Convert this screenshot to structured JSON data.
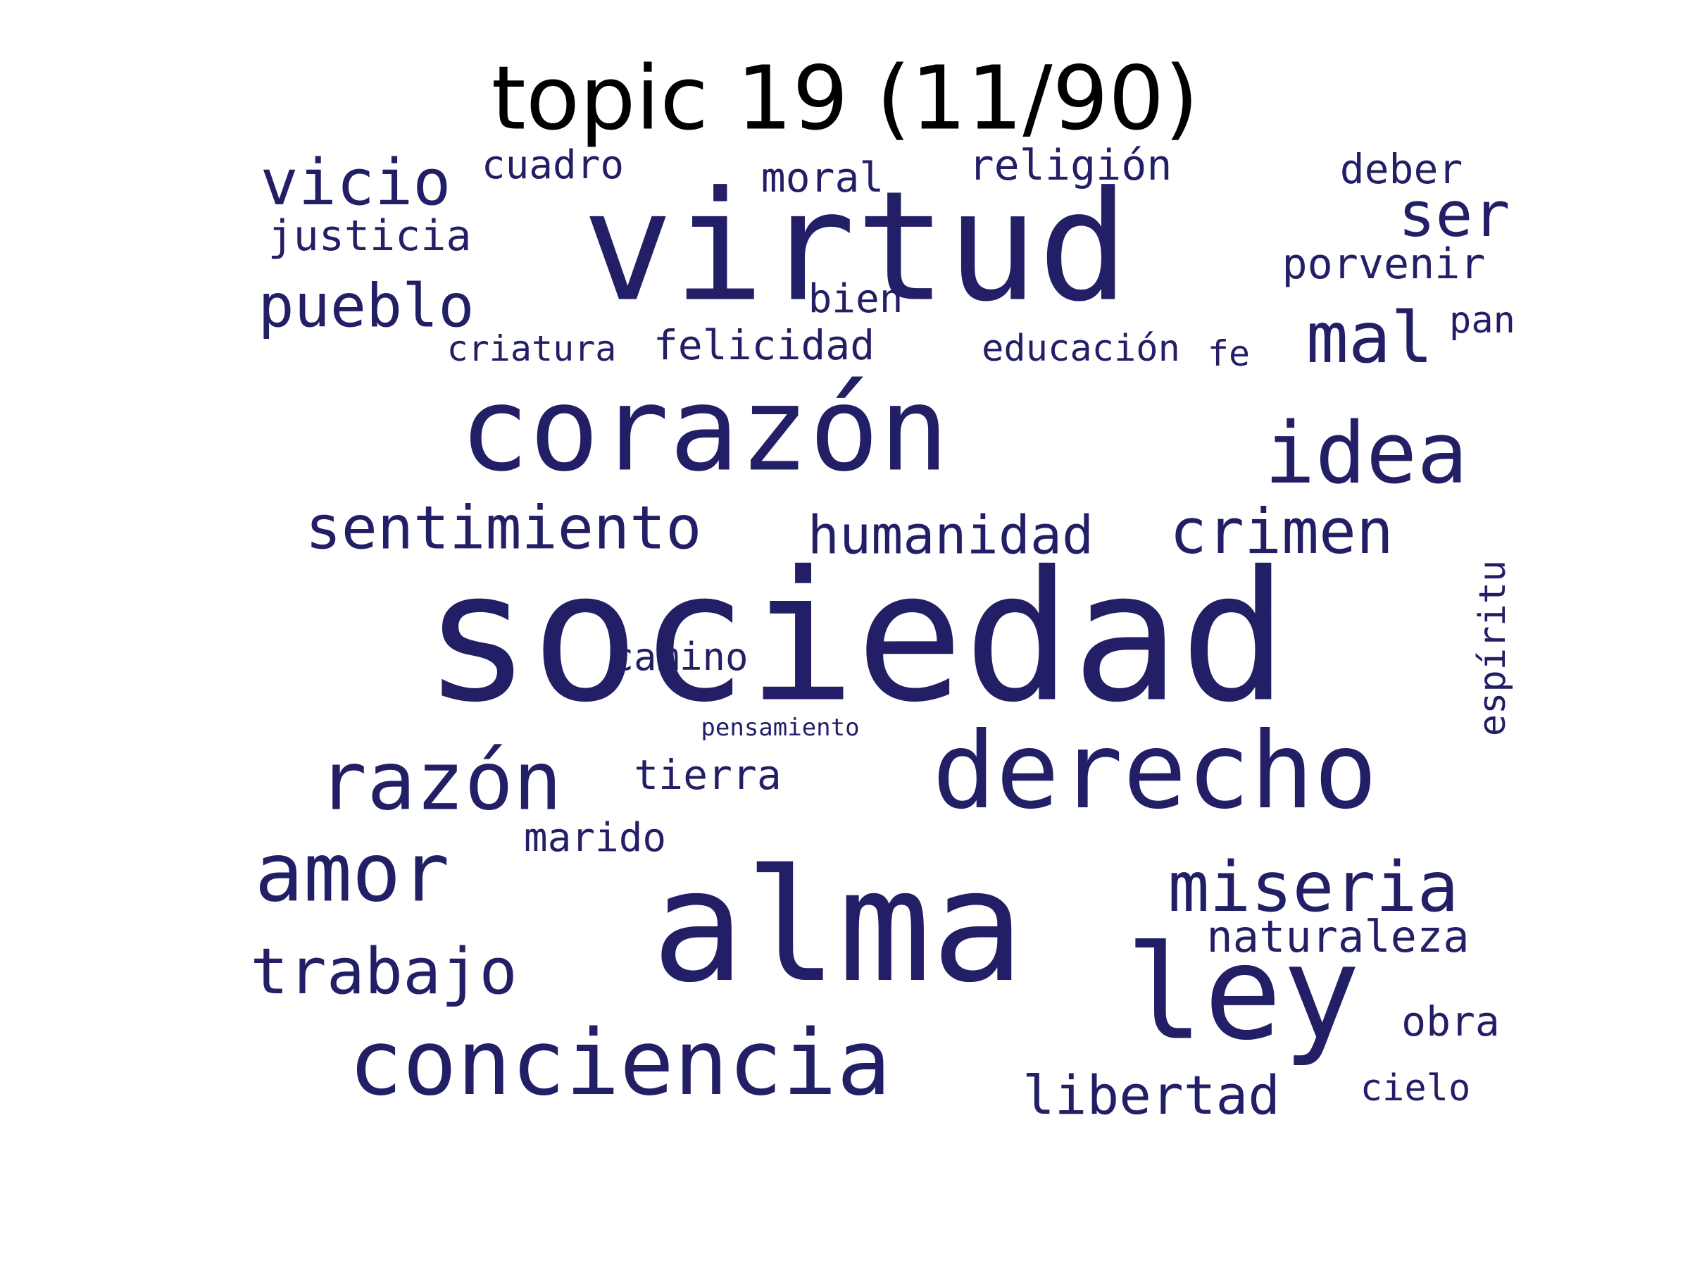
{
  "title": "topic 19 (11/90)",
  "colors": {
    "word": "#231f66",
    "title": "#000000",
    "background": "#ffffff"
  },
  "words": [
    {
      "text": "sociedad"
    },
    {
      "text": "virtud"
    },
    {
      "text": "alma"
    },
    {
      "text": "corazón"
    },
    {
      "text": "derecho"
    },
    {
      "text": "ley"
    },
    {
      "text": "conciencia"
    },
    {
      "text": "idea"
    },
    {
      "text": "razón"
    },
    {
      "text": "amor"
    },
    {
      "text": "miseria"
    },
    {
      "text": "trabajo"
    },
    {
      "text": "vicio"
    },
    {
      "text": "pueblo"
    },
    {
      "text": "sentimiento"
    },
    {
      "text": "crimen"
    },
    {
      "text": "humanidad"
    },
    {
      "text": "mal"
    },
    {
      "text": "ser"
    },
    {
      "text": "libertad"
    },
    {
      "text": "naturaleza"
    },
    {
      "text": "espíritu"
    },
    {
      "text": "justicia"
    },
    {
      "text": "porvenir"
    },
    {
      "text": "religión"
    },
    {
      "text": "cuadro"
    },
    {
      "text": "deber"
    },
    {
      "text": "moral"
    },
    {
      "text": "felicidad"
    },
    {
      "text": "educación"
    },
    {
      "text": "criatura"
    },
    {
      "text": "bien"
    },
    {
      "text": "camino"
    },
    {
      "text": "tierra"
    },
    {
      "text": "marido"
    },
    {
      "text": "obra"
    },
    {
      "text": "cielo"
    },
    {
      "text": "pan"
    },
    {
      "text": "fe"
    },
    {
      "text": "pensamiento"
    }
  ]
}
